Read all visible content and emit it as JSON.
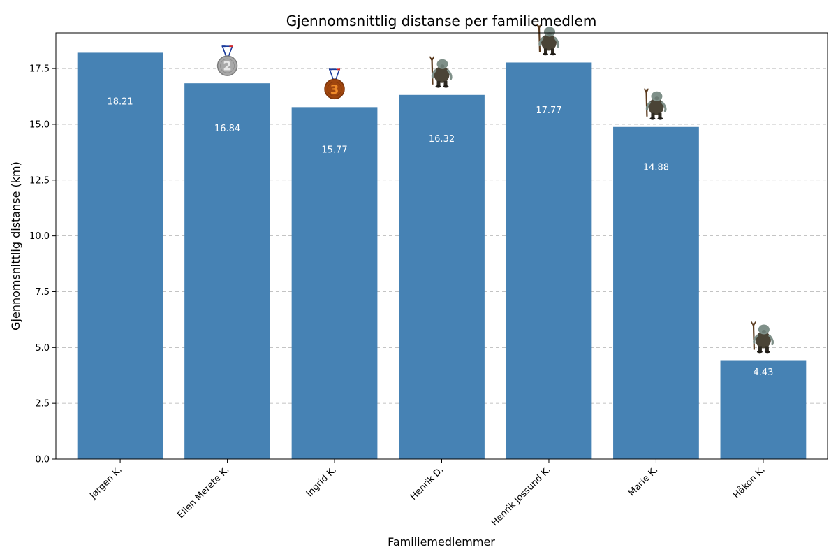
{
  "chart_data": {
    "type": "bar",
    "title": "Gjennomsnittlig distanse per familiemedlem",
    "xlabel": "Familiemedlemmer",
    "ylabel": "Gjennomsnittlig distanse (km)",
    "categories": [
      "Jørgen K.",
      "Ellen Merete K.",
      "Ingrid K.",
      "Henrik D.",
      "Henrik Jøssund K.",
      "Marie K.",
      "Håkon K."
    ],
    "values": [
      18.21,
      16.84,
      15.77,
      16.32,
      17.77,
      14.88,
      4.43
    ],
    "value_labels": [
      "18.21",
      "16.84",
      "15.77",
      "16.32",
      "17.77",
      "14.88",
      "4.43"
    ],
    "markers": [
      "none",
      "silver-medal-icon",
      "bronze-medal-icon",
      "troll-icon",
      "troll-icon",
      "troll-icon",
      "troll-icon"
    ],
    "medal_numbers": {
      "silver-medal-icon": "2",
      "bronze-medal-icon": "3"
    },
    "ylim": [
      0,
      19.1
    ],
    "yticks": [
      0.0,
      2.5,
      5.0,
      7.5,
      10.0,
      12.5,
      15.0,
      17.5
    ],
    "ytick_labels": [
      "0.0",
      "2.5",
      "5.0",
      "7.5",
      "10.0",
      "12.5",
      "15.0",
      "17.5"
    ],
    "grid": "y-dashed",
    "bar_color": "#4682b4"
  }
}
